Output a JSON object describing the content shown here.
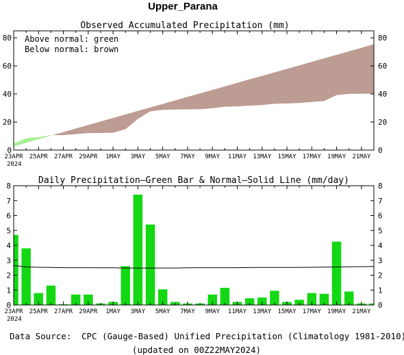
{
  "title": "Upper_Parana",
  "top_panel": {
    "title": "Observed Accumulated Precipitation (mm)",
    "legend": [
      "Above normal: green",
      "Below normal: brown"
    ],
    "colors": {
      "above": "#a8ef98",
      "below": "#bd9c93"
    }
  },
  "bottom_panel": {
    "title": "Daily Precipitation—Green Bar & Normal—Solid Line (mm/day)",
    "colors": {
      "bar": "#13d813",
      "line": "#000000"
    }
  },
  "x_ticks": [
    "23APR",
    "25APR",
    "27APR",
    "29APR",
    "1MAY",
    "3MAY",
    "5MAY",
    "7MAY",
    "9MAY",
    "11MAY",
    "13MAY",
    "15MAY",
    "17MAY",
    "19MAY",
    "21MAY"
  ],
  "x_year": "2024",
  "footer": {
    "source_label": "Data Source:",
    "source_text": "CPC (Gauge-Based) Unified Precipitation (Climatology 1981-2010)",
    "updated": "(updated on 00Z22MAY2024)",
    "source_label_color": "#e8332a"
  },
  "chart_data": [
    {
      "type": "area",
      "title": "Observed Accumulated Precipitation (mm)",
      "x": [
        "23APR",
        "24APR",
        "25APR",
        "26APR",
        "27APR",
        "28APR",
        "29APR",
        "30APR",
        "1MAY",
        "2MAY",
        "3MAY",
        "4MAY",
        "5MAY",
        "6MAY",
        "7MAY",
        "8MAY",
        "9MAY",
        "10MAY",
        "11MAY",
        "12MAY",
        "13MAY",
        "14MAY",
        "15MAY",
        "16MAY",
        "17MAY",
        "18MAY",
        "19MAY",
        "20MAY",
        "21MAY",
        "22MAY"
      ],
      "series": [
        {
          "name": "Observed",
          "values": [
            4.7,
            8.5,
            9.3,
            10.6,
            10.7,
            11.4,
            12.1,
            12.2,
            12.4,
            14.9,
            22.3,
            27.6,
            28.7,
            28.9,
            29.0,
            29.1,
            29.8,
            30.9,
            31.1,
            31.6,
            32.1,
            33.0,
            33.2,
            33.6,
            34.3,
            35.0,
            39.2,
            40.1,
            40.2,
            40.3
          ]
        },
        {
          "name": "Normal",
          "values": [
            2.6,
            5.2,
            7.7,
            10.3,
            12.8,
            15.4,
            17.9,
            20.4,
            22.9,
            25.4,
            27.9,
            30.4,
            32.9,
            35.4,
            37.9,
            40.4,
            42.9,
            45.4,
            47.9,
            50.4,
            52.9,
            55.4,
            57.9,
            60.4,
            62.9,
            65.4,
            67.9,
            70.4,
            72.9,
            75.5
          ]
        }
      ],
      "ylim": [
        0,
        85
      ],
      "yticks": [
        0,
        20,
        40,
        60,
        80
      ]
    },
    {
      "type": "bar",
      "title": "Daily Precipitation—Green Bar & Normal—Solid Line (mm/day)",
      "x": [
        "23APR",
        "24APR",
        "25APR",
        "26APR",
        "27APR",
        "28APR",
        "29APR",
        "30APR",
        "1MAY",
        "2MAY",
        "3MAY",
        "4MAY",
        "5MAY",
        "6MAY",
        "7MAY",
        "8MAY",
        "9MAY",
        "10MAY",
        "11MAY",
        "12MAY",
        "13MAY",
        "14MAY",
        "15MAY",
        "16MAY",
        "17MAY",
        "18MAY",
        "19MAY",
        "20MAY",
        "21MAY",
        "22MAY"
      ],
      "series": [
        {
          "name": "Daily Precipitation",
          "values": [
            4.7,
            3.8,
            0.8,
            1.3,
            0.05,
            0.7,
            0.7,
            0.1,
            0.2,
            2.6,
            7.4,
            5.4,
            1.05,
            0.2,
            0.1,
            0.1,
            0.7,
            1.15,
            0.2,
            0.45,
            0.5,
            0.95,
            0.2,
            0.35,
            0.8,
            0.75,
            4.25,
            0.9,
            0.1,
            0.1
          ]
        },
        {
          "name": "Normal",
          "values": [
            2.65,
            2.55,
            2.53,
            2.52,
            2.5,
            2.5,
            2.5,
            2.49,
            2.49,
            2.48,
            2.48,
            2.48,
            2.48,
            2.48,
            2.49,
            2.5,
            2.5,
            2.5,
            2.5,
            2.51,
            2.52,
            2.52,
            2.52,
            2.52,
            2.53,
            2.54,
            2.55,
            2.56,
            2.57,
            2.58
          ]
        }
      ],
      "ylim": [
        0,
        8
      ],
      "yticks": [
        0,
        1,
        2,
        3,
        4,
        5,
        6,
        7,
        8
      ]
    }
  ]
}
